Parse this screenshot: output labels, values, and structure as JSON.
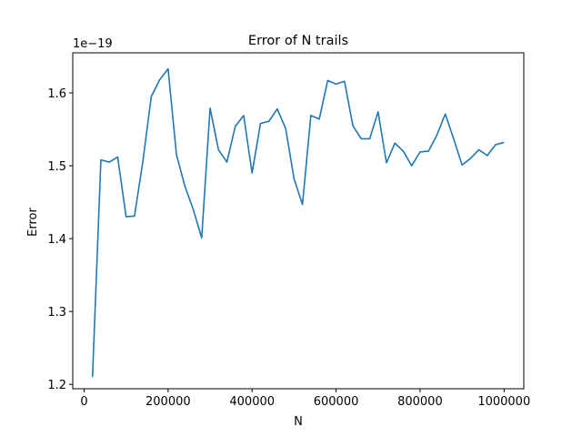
{
  "chart_data": {
    "type": "line",
    "title": "Error of N trails",
    "xlabel": "N",
    "ylabel": "Error",
    "offset_label": "1e−19",
    "xlim": [
      -27000,
      1047000
    ],
    "ylim": [
      1.194,
      1.655
    ],
    "x_ticks": [
      0,
      200000,
      400000,
      600000,
      800000,
      1000000
    ],
    "x_tick_labels": [
      "0",
      "200000",
      "400000",
      "600000",
      "800000",
      "1000000"
    ],
    "y_ticks": [
      1.2,
      1.3,
      1.4,
      1.5,
      1.6
    ],
    "y_tick_labels": [
      "1.2",
      "1.3",
      "1.4",
      "1.5",
      "1.6"
    ],
    "grid": false,
    "line_color": "#1f77b4",
    "series": [
      {
        "x": [
          20000,
          40000,
          60000,
          80000,
          100000,
          120000,
          140000,
          160000,
          180000,
          200000,
          220000,
          240000,
          260000,
          280000,
          300000,
          320000,
          340000,
          360000,
          380000,
          400000,
          420000,
          440000,
          460000,
          480000,
          500000,
          520000,
          540000,
          560000,
          580000,
          600000,
          620000,
          640000,
          660000,
          680000,
          700000,
          720000,
          740000,
          760000,
          780000,
          800000,
          820000,
          840000,
          860000,
          880000,
          900000,
          920000,
          940000,
          960000,
          980000,
          1000000
        ],
        "values": [
          1.21,
          1.508,
          1.505,
          1.512,
          1.43,
          1.431,
          1.506,
          1.595,
          1.618,
          1.633,
          1.515,
          1.472,
          1.44,
          1.401,
          1.579,
          1.522,
          1.505,
          1.554,
          1.569,
          1.49,
          1.558,
          1.561,
          1.578,
          1.551,
          1.482,
          1.447,
          1.569,
          1.564,
          1.617,
          1.612,
          1.616,
          1.555,
          1.537,
          1.537,
          1.574,
          1.504,
          1.531,
          1.52,
          1.5,
          1.519,
          1.52,
          1.542,
          1.571,
          1.537,
          1.501,
          1.51,
          1.522,
          1.514,
          1.529,
          1.532
        ]
      }
    ]
  }
}
